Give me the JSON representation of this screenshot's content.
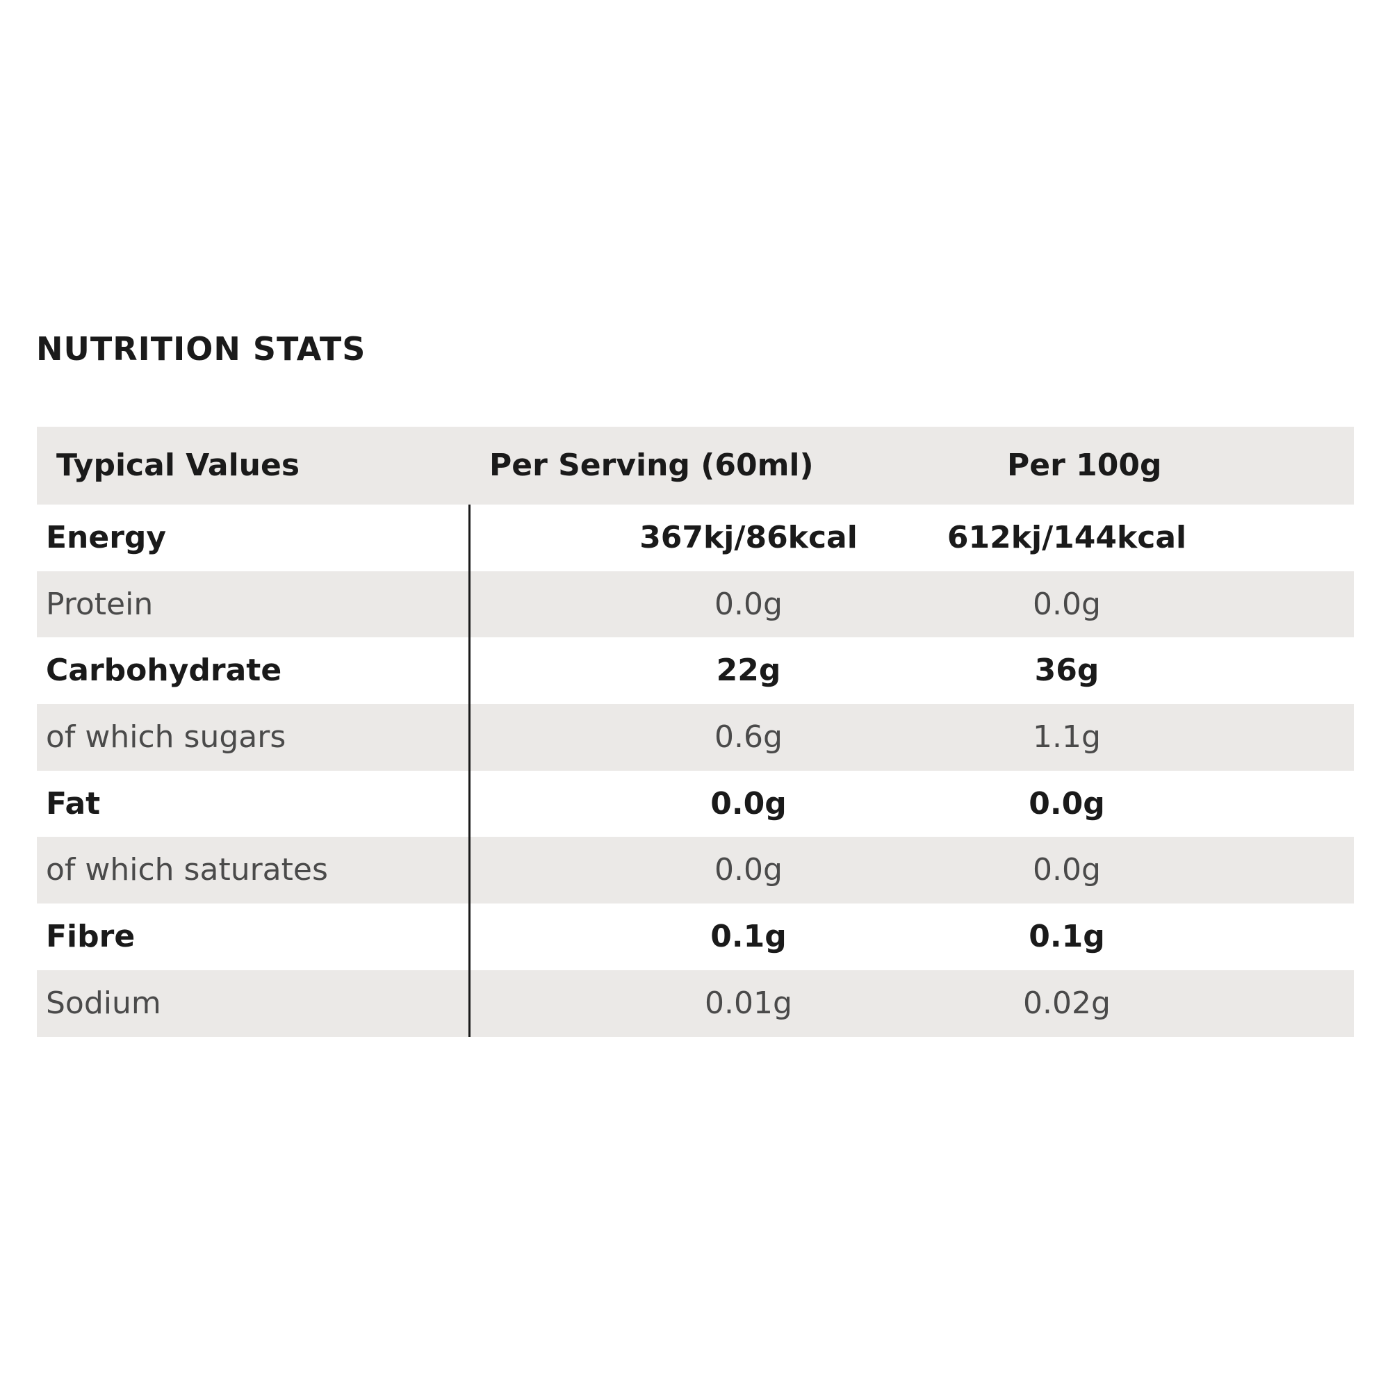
{
  "title": "NUTRITION STATS",
  "table": {
    "headers": {
      "label": "Typical Values",
      "serving": "Per Serving (60ml)",
      "per100": "Per 100g"
    },
    "rows": [
      {
        "label": "Energy",
        "serving": "367kj/86kcal",
        "per100": "612kj/144kcal"
      },
      {
        "label": "Protein",
        "serving": "0.0g",
        "per100": "0.0g"
      },
      {
        "label": "Carbohydrate",
        "serving": "22g",
        "per100": "36g"
      },
      {
        "label": "of which sugars",
        "serving": "0.6g",
        "per100": "1.1g"
      },
      {
        "label": "Fat",
        "serving": "0.0g",
        "per100": "0.0g"
      },
      {
        "label": "of which saturates",
        "serving": "0.0g",
        "per100": "0.0g"
      },
      {
        "label": "Fibre",
        "serving": "0.1g",
        "per100": "0.1g"
      },
      {
        "label": "Sodium",
        "serving": "0.01g",
        "per100": "0.02g"
      }
    ]
  },
  "colors": {
    "shade": "#ebe9e7",
    "text": "#1a1a1a",
    "light_text": "#4a4a4a"
  }
}
